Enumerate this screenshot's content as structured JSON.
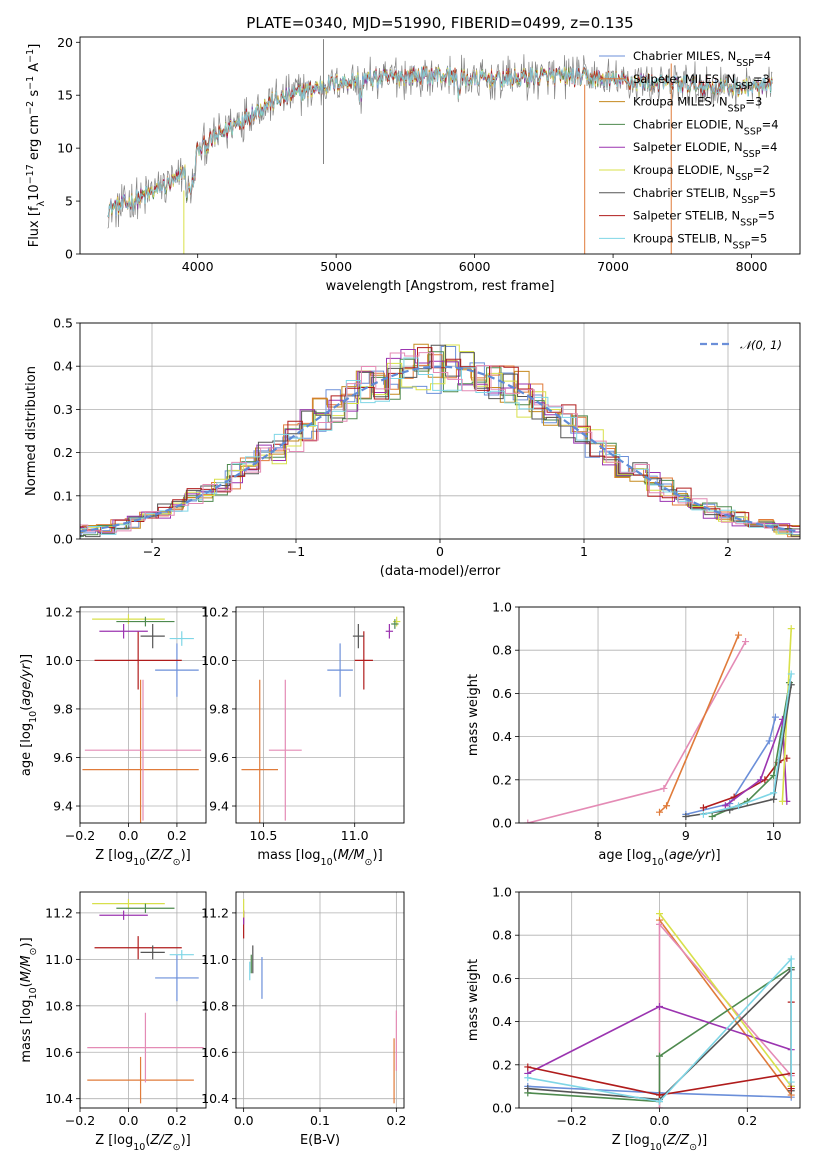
{
  "title": "PLATE=0340, MJD=51990, FIBERID=0499, z=0.135",
  "colors": {
    "Chabrier MILES": "#6b8fd9",
    "Salpeter MILES": "#e07b3a",
    "Kroupa MILES": "#c58a1f",
    "Chabrier ELODIE": "#4e8a4e",
    "Salpeter ELODIE": "#9b34b0",
    "Kroupa ELODIE": "#d8e04a",
    "Chabrier STELIB": "#555555",
    "Salpeter STELIB": "#b01c1c",
    "Kroupa STELIB": "#7fd6e6",
    "pink": "#e48bb5"
  },
  "chart_data": [
    {
      "type": "line",
      "name": "spectrum",
      "xlabel": "wavelength [Angstrom, rest frame]",
      "ylabel": "Flux [f_λ10^-17 erg cm^-2 s^-1 A^-1]",
      "xlim": [
        3150,
        8350
      ],
      "ylim": [
        0,
        20.5
      ],
      "xticks": [
        4000,
        5000,
        6000,
        7000,
        8000
      ],
      "yticks": [
        0,
        5,
        10,
        15,
        20
      ],
      "legend_position": "top-right",
      "legend": [
        {
          "label": "Chabrier MILES, N_SSP=4",
          "color": "#6b8fd9"
        },
        {
          "label": "Salpeter MILES, N_SSP=3",
          "color": "#e07b3a"
        },
        {
          "label": "Kroupa MILES, N_SSP=3",
          "color": "#c58a1f"
        },
        {
          "label": "Chabrier ELODIE, N_SSP=4",
          "color": "#4e8a4e"
        },
        {
          "label": "Salpeter ELODIE, N_SSP=4",
          "color": "#9b34b0"
        },
        {
          "label": "Kroupa ELODIE, N_SSP=2",
          "color": "#d8e04a"
        },
        {
          "label": "Chabrier STELIB, N_SSP=5",
          "color": "#555555"
        },
        {
          "label": "Salpeter STELIB, N_SSP=5",
          "color": "#b01c1c"
        },
        {
          "label": "Kroupa STELIB, N_SSP=5",
          "color": "#7fd6e6"
        }
      ],
      "continuum": [
        [
          3350,
          4.3
        ],
        [
          3500,
          4.8
        ],
        [
          3700,
          6.0
        ],
        [
          3850,
          7.0
        ],
        [
          4000,
          9.8
        ],
        [
          4150,
          11.2
        ],
        [
          4300,
          12.5
        ],
        [
          4500,
          14.2
        ],
        [
          4750,
          15.3
        ],
        [
          5000,
          16.2
        ],
        [
          5250,
          16.5
        ],
        [
          5500,
          16.8
        ],
        [
          5750,
          16.9
        ],
        [
          6000,
          16.5
        ],
        [
          6250,
          16.6
        ],
        [
          6500,
          16.8
        ],
        [
          6800,
          16.7
        ],
        [
          7000,
          16.4
        ],
        [
          7400,
          16.1
        ],
        [
          7800,
          15.8
        ],
        [
          8150,
          15.7
        ]
      ]
    },
    {
      "type": "step-histogram",
      "name": "residuals",
      "xlabel": "(data-model)/error",
      "ylabel": "Normed distribution",
      "xlim": [
        -2.5,
        2.5
      ],
      "ylim": [
        0,
        0.5
      ],
      "xticks": [
        -2,
        -1,
        0,
        1,
        2
      ],
      "yticks": [
        0.0,
        0.1,
        0.2,
        0.3,
        0.4,
        0.5
      ],
      "legend": [
        {
          "label": "𝒩(0, 1)",
          "color": "#6b8fd9",
          "style": "dashed"
        }
      ],
      "bin_width": 0.1
    },
    {
      "type": "scatter",
      "name": "age-vs-Z",
      "xlabel": "Z [log10(Z/Z⊙)]",
      "ylabel": "age [log10(age/yr)]",
      "xlim": [
        -0.2,
        0.32
      ],
      "ylim": [
        9.33,
        10.22
      ],
      "xticks": [
        -0.2,
        0.0,
        0.2
      ],
      "yticks": [
        9.4,
        9.6,
        9.8,
        10.0,
        10.2
      ],
      "points": [
        {
          "color": "#e07b3a",
          "x": 0.05,
          "xerr": 0.24,
          "y": 9.55,
          "yerr": 0.37
        },
        {
          "color": "#e48bb5",
          "x": 0.06,
          "xerr": 0.24,
          "y": 9.63,
          "yerr": 0.29
        },
        {
          "color": "#6b8fd9",
          "x": 0.2,
          "xerr": 0.09,
          "y": 9.96,
          "yerr": 0.11
        },
        {
          "color": "#b01c1c",
          "x": 0.04,
          "xerr": 0.18,
          "y": 10.0,
          "yerr": 0.12
        },
        {
          "color": "#555555",
          "x": 0.1,
          "xerr": 0.05,
          "y": 10.1,
          "yerr": 0.05
        },
        {
          "color": "#9b34b0",
          "x": -0.02,
          "xerr": 0.1,
          "y": 10.12,
          "yerr": 0.03
        },
        {
          "color": "#d8e04a",
          "x": 0.0,
          "xerr": 0.15,
          "y": 10.17,
          "yerr": 0.02
        },
        {
          "color": "#4e8a4e",
          "x": 0.07,
          "xerr": 0.12,
          "y": 10.16,
          "yerr": 0.02
        },
        {
          "color": "#7fd6e6",
          "x": 0.22,
          "xerr": 0.05,
          "y": 10.09,
          "yerr": 0.03
        }
      ]
    },
    {
      "type": "scatter",
      "name": "age-vs-mass",
      "xlabel": "mass [log10(M/M⊙)]",
      "ylabel": "",
      "xlim": [
        10.35,
        11.27
      ],
      "ylim": [
        9.33,
        10.22
      ],
      "xticks": [
        10.5,
        11.0
      ],
      "yticks": [
        9.4,
        9.6,
        9.8,
        10.0,
        10.2
      ],
      "points": [
        {
          "color": "#e07b3a",
          "x": 10.48,
          "xerr": 0.1,
          "y": 9.55,
          "yerr": 0.37
        },
        {
          "color": "#e48bb5",
          "x": 10.62,
          "xerr": 0.09,
          "y": 9.63,
          "yerr": 0.29
        },
        {
          "color": "#6b8fd9",
          "x": 10.92,
          "xerr": 0.07,
          "y": 9.96,
          "yerr": 0.11
        },
        {
          "color": "#b01c1c",
          "x": 11.05,
          "xerr": 0.05,
          "y": 10.0,
          "yerr": 0.12
        },
        {
          "color": "#555555",
          "x": 11.02,
          "xerr": 0.03,
          "y": 10.1,
          "yerr": 0.05
        },
        {
          "color": "#9b34b0",
          "x": 11.19,
          "xerr": 0.02,
          "y": 10.12,
          "yerr": 0.03
        },
        {
          "color": "#d8e04a",
          "x": 11.23,
          "xerr": 0.02,
          "y": 10.16,
          "yerr": 0.02
        },
        {
          "color": "#4e8a4e",
          "x": 11.22,
          "xerr": 0.02,
          "y": 10.15,
          "yerr": 0.02
        }
      ]
    },
    {
      "type": "line",
      "name": "mass-weight-vs-age",
      "xlabel": "age [log10(age/yr)]",
      "ylabel": "mass weight",
      "xlim": [
        7.1,
        10.3
      ],
      "ylim": [
        0,
        1.0
      ],
      "xticks": [
        8,
        9,
        10
      ],
      "yticks": [
        0.0,
        0.2,
        0.4,
        0.6,
        0.8,
        1.0
      ],
      "series": [
        {
          "color": "#e48bb5",
          "points": [
            [
              7.2,
              0.0
            ],
            [
              8.75,
              0.16
            ],
            [
              9.68,
              0.84
            ]
          ]
        },
        {
          "color": "#e07b3a",
          "points": [
            [
              8.7,
              0.05
            ],
            [
              8.78,
              0.08
            ],
            [
              9.6,
              0.87
            ]
          ]
        },
        {
          "color": "#6b8fd9",
          "points": [
            [
              9.0,
              0.04
            ],
            [
              9.5,
              0.09
            ],
            [
              9.95,
              0.38
            ],
            [
              10.02,
              0.49
            ]
          ]
        },
        {
          "color": "#b01c1c",
          "points": [
            [
              9.2,
              0.07
            ],
            [
              9.55,
              0.12
            ],
            [
              9.9,
              0.2
            ],
            [
              10.05,
              0.28
            ],
            [
              10.15,
              0.3
            ]
          ]
        },
        {
          "color": "#4e8a4e",
          "points": [
            [
              9.3,
              0.03
            ],
            [
              9.7,
              0.1
            ],
            [
              10.0,
              0.22
            ],
            [
              10.18,
              0.65
            ]
          ]
        },
        {
          "color": "#9b34b0",
          "points": [
            [
              9.45,
              0.08
            ],
            [
              9.85,
              0.2
            ],
            [
              10.1,
              0.48
            ],
            [
              10.15,
              0.1
            ]
          ]
        },
        {
          "color": "#d8e04a",
          "points": [
            [
              10.1,
              0.1
            ],
            [
              10.2,
              0.9
            ]
          ]
        },
        {
          "color": "#555555",
          "points": [
            [
              9.0,
              0.03
            ],
            [
              9.5,
              0.06
            ],
            [
              10.0,
              0.11
            ],
            [
              10.2,
              0.64
            ]
          ]
        },
        {
          "color": "#7fd6e6",
          "points": [
            [
              9.2,
              0.04
            ],
            [
              9.6,
              0.08
            ],
            [
              10.0,
              0.14
            ],
            [
              10.2,
              0.69
            ]
          ]
        }
      ]
    },
    {
      "type": "scatter",
      "name": "mass-vs-Z",
      "xlabel": "Z [log10(Z/Z⊙)]",
      "ylabel": "mass [log10(M/M⊙)]",
      "xlim": [
        -0.2,
        0.32
      ],
      "ylim": [
        10.36,
        11.29
      ],
      "xticks": [
        -0.2,
        0.0,
        0.2
      ],
      "yticks": [
        10.4,
        10.6,
        10.8,
        11.0,
        11.2
      ],
      "points": [
        {
          "color": "#e07b3a",
          "x": 0.05,
          "xerr": 0.22,
          "y": 10.48,
          "yerr": 0.1
        },
        {
          "color": "#e48bb5",
          "x": 0.07,
          "xerr": 0.24,
          "y": 10.62,
          "yerr": 0.15
        },
        {
          "color": "#6b8fd9",
          "x": 0.2,
          "xerr": 0.09,
          "y": 10.92,
          "yerr": 0.1
        },
        {
          "color": "#b01c1c",
          "x": 0.04,
          "xerr": 0.18,
          "y": 11.05,
          "yerr": 0.05
        },
        {
          "color": "#555555",
          "x": 0.1,
          "xerr": 0.05,
          "y": 11.03,
          "yerr": 0.03
        },
        {
          "color": "#9b34b0",
          "x": -0.02,
          "xerr": 0.1,
          "y": 11.19,
          "yerr": 0.02
        },
        {
          "color": "#d8e04a",
          "x": 0.0,
          "xerr": 0.15,
          "y": 11.24,
          "yerr": 0.02
        },
        {
          "color": "#4e8a4e",
          "x": 0.07,
          "xerr": 0.12,
          "y": 11.22,
          "yerr": 0.02
        },
        {
          "color": "#7fd6e6",
          "x": 0.22,
          "xerr": 0.05,
          "y": 11.02,
          "yerr": 0.02
        }
      ]
    },
    {
      "type": "scatter",
      "name": "mass-vs-EBV",
      "xlabel": "E(B-V)",
      "ylabel": "",
      "xlim": [
        -0.01,
        0.21
      ],
      "ylim": [
        10.36,
        11.29
      ],
      "xticks": [
        0.0,
        0.1,
        0.2
      ],
      "yticks": [
        10.4,
        10.6,
        10.8,
        11.0,
        11.2
      ],
      "points": [
        {
          "color": "#e07b3a",
          "x": 0.197,
          "y": 10.52,
          "yerr": 0.14
        },
        {
          "color": "#e48bb5",
          "x": 0.2,
          "y": 10.65,
          "yerr": 0.13
        },
        {
          "color": "#6b8fd9",
          "x": 0.024,
          "y": 10.92,
          "yerr": 0.09
        },
        {
          "color": "#555555",
          "x": 0.012,
          "y": 11.0,
          "yerr": 0.06
        },
        {
          "color": "#4e8a4e",
          "x": 0.01,
          "y": 10.98,
          "yerr": 0.04
        },
        {
          "color": "#7fd6e6",
          "x": 0.008,
          "y": 10.95,
          "yerr": 0.04
        },
        {
          "color": "#b01c1c",
          "x": 0.0,
          "y": 11.15,
          "yerr": 0.06
        },
        {
          "color": "#9b34b0",
          "x": 0.0,
          "y": 11.18,
          "yerr": 0.03
        },
        {
          "color": "#d8e04a",
          "x": 0.0,
          "y": 11.22,
          "yerr": 0.04
        }
      ]
    },
    {
      "type": "line",
      "name": "mass-weight-vs-Z",
      "xlabel": "Z [log10(Z/Z⊙)]",
      "ylabel": "mass weight",
      "xlim": [
        -0.32,
        0.32
      ],
      "ylim": [
        0,
        1.0
      ],
      "xticks": [
        -0.2,
        0.0,
        0.2
      ],
      "yticks": [
        0.0,
        0.2,
        0.4,
        0.6,
        0.8,
        1.0
      ],
      "series": [
        {
          "color": "#6b8fd9",
          "points": [
            [
              -0.3,
              0.1
            ],
            [
              0.0,
              0.07
            ],
            [
              0.3,
              0.05
            ]
          ]
        },
        {
          "color": "#e07b3a",
          "points": [
            [
              0.0,
              0.87
            ],
            [
              0.3,
              0.06
            ]
          ]
        },
        {
          "color": "#e48bb5",
          "points": [
            [
              0.0,
              0.0
            ],
            [
              0.0,
              0.85
            ],
            [
              0.3,
              0.15
            ]
          ]
        },
        {
          "color": "#4e8a4e",
          "points": [
            [
              -0.3,
              0.07
            ],
            [
              0.0,
              0.03
            ],
            [
              0.0,
              0.24
            ],
            [
              0.3,
              0.65
            ],
            [
              0.3,
              0.1
            ]
          ]
        },
        {
          "color": "#9b34b0",
          "points": [
            [
              -0.3,
              0.16
            ],
            [
              0.0,
              0.47
            ],
            [
              0.3,
              0.27
            ]
          ]
        },
        {
          "color": "#d8e04a",
          "points": [
            [
              0.0,
              0.9
            ],
            [
              0.3,
              0.1
            ]
          ]
        },
        {
          "color": "#555555",
          "points": [
            [
              -0.3,
              0.09
            ],
            [
              0.0,
              0.04
            ],
            [
              0.3,
              0.64
            ],
            [
              0.3,
              0.08
            ]
          ]
        },
        {
          "color": "#b01c1c",
          "points": [
            [
              -0.3,
              0.19
            ],
            [
              0.0,
              0.06
            ],
            [
              0.3,
              0.16
            ],
            [
              0.3,
              0.49
            ],
            [
              0.3,
              0.09
            ]
          ]
        },
        {
          "color": "#7fd6e6",
          "points": [
            [
              -0.3,
              0.14
            ],
            [
              0.0,
              0.03
            ],
            [
              0.3,
              0.69
            ],
            [
              0.3,
              0.12
            ]
          ]
        }
      ]
    }
  ]
}
